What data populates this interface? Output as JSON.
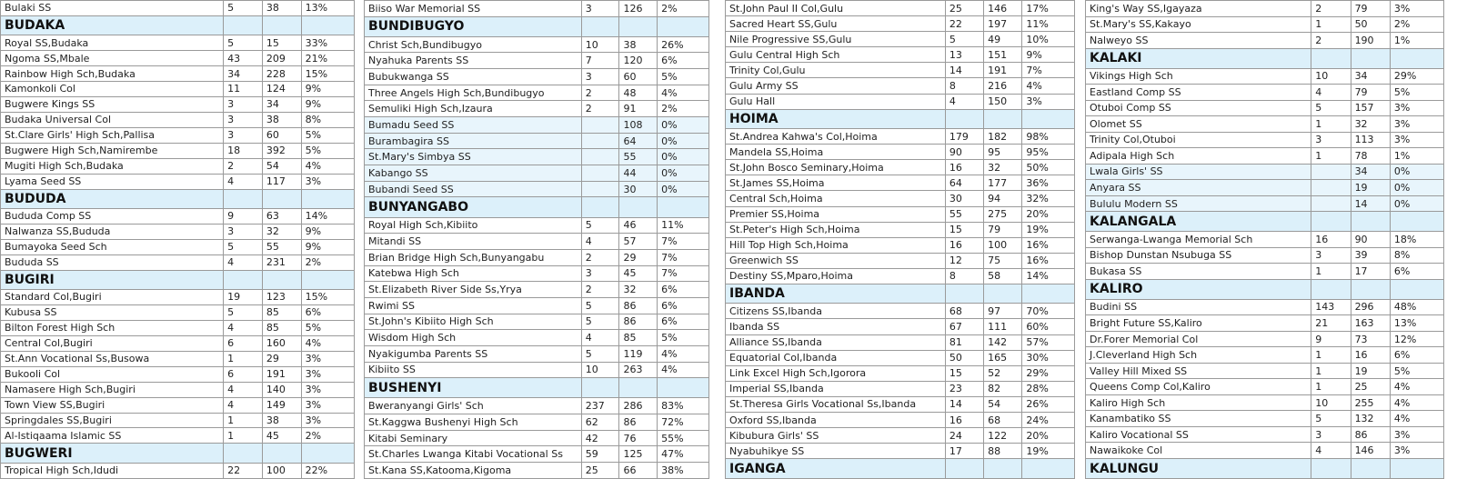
{
  "columns": [
    {
      "rows": [
        {
          "school": "Bulaki SS",
          "a": 5,
          "b": 38,
          "pct": "13%"
        },
        {
          "heading": "BUDAKA"
        },
        {
          "school": "Royal SS,Budaka",
          "a": 5,
          "b": 15,
          "pct": "33%"
        },
        {
          "school": "Ngoma SS,Mbale",
          "a": 43,
          "b": 209,
          "pct": "21%"
        },
        {
          "school": "Rainbow High Sch,Budaka",
          "a": 34,
          "b": 228,
          "pct": "15%"
        },
        {
          "school": "Kamonkoli Col",
          "a": 11,
          "b": 124,
          "pct": "9%"
        },
        {
          "school": "Bugwere Kings SS",
          "a": 3,
          "b": 34,
          "pct": "9%"
        },
        {
          "school": "Budaka Universal Col",
          "a": 3,
          "b": 38,
          "pct": "8%"
        },
        {
          "school": "St.Clare Girls' High Sch,Pallisa",
          "a": 3,
          "b": 60,
          "pct": "5%"
        },
        {
          "school": "Bugwere High Sch,Namirembe",
          "a": 18,
          "b": 392,
          "pct": "5%"
        },
        {
          "school": "Mugiti High Sch,Budaka",
          "a": 2,
          "b": 54,
          "pct": "4%"
        },
        {
          "school": "Lyama Seed SS",
          "a": 4,
          "b": 117,
          "pct": "3%"
        },
        {
          "heading": "BUDUDA"
        },
        {
          "school": "Bududa Comp SS",
          "a": 9,
          "b": 63,
          "pct": "14%"
        },
        {
          "school": "Nalwanza SS,Bududa",
          "a": 3,
          "b": 32,
          "pct": "9%"
        },
        {
          "school": "Bumayoka Seed Sch",
          "a": 5,
          "b": 55,
          "pct": "9%"
        },
        {
          "school": "Bududa SS",
          "a": 4,
          "b": 231,
          "pct": "2%"
        },
        {
          "heading": "BUGIRI"
        },
        {
          "school": "Standard Col,Bugiri",
          "a": 19,
          "b": 123,
          "pct": "15%"
        },
        {
          "school": "Kubusa SS",
          "a": 5,
          "b": 85,
          "pct": "6%"
        },
        {
          "school": "Bilton Forest High Sch",
          "a": 4,
          "b": 85,
          "pct": "5%"
        },
        {
          "school": "Central Col,Bugiri",
          "a": 6,
          "b": 160,
          "pct": "4%"
        },
        {
          "school": "St.Ann Vocational Ss,Busowa",
          "a": 1,
          "b": 29,
          "pct": "3%"
        },
        {
          "school": "Bukooli Col",
          "a": 6,
          "b": 191,
          "pct": "3%"
        },
        {
          "school": "Namasere High Sch,Bugiri",
          "a": 4,
          "b": 140,
          "pct": "3%"
        },
        {
          "school": "Town View SS,Bugiri",
          "a": 4,
          "b": 149,
          "pct": "3%"
        },
        {
          "school": "Springdales SS,Bugiri",
          "a": 1,
          "b": 38,
          "pct": "3%"
        },
        {
          "school": "Al-Istiqaama Islamic SS",
          "a": 1,
          "b": 45,
          "pct": "2%"
        },
        {
          "heading": "BUGWERI"
        },
        {
          "school": "Tropical High Sch,Idudi",
          "a": 22,
          "b": 100,
          "pct": "22%"
        }
      ]
    },
    {
      "rows": [
        {
          "school": "Biiso War Memorial SS",
          "a": 3,
          "b": 126,
          "pct": "2%"
        },
        {
          "heading": "BUNDIBUGYO"
        },
        {
          "school": "Christ Sch,Bundibugyo",
          "a": 10,
          "b": 38,
          "pct": "26%"
        },
        {
          "school": "Nyahuka Parents SS",
          "a": 7,
          "b": 120,
          "pct": "6%"
        },
        {
          "school": "Bubukwanga SS",
          "a": 3,
          "b": 60,
          "pct": "5%"
        },
        {
          "school": "Three Angels High Sch,Bundibugyo",
          "a": 2,
          "b": 48,
          "pct": "4%"
        },
        {
          "school": "Semuliki High Sch,Izaura",
          "a": 2,
          "b": 91,
          "pct": "2%"
        },
        {
          "school": "Bumadu Seed SS",
          "a": null,
          "b": 108,
          "pct": "0%"
        },
        {
          "school": "Burambagira SS",
          "a": null,
          "b": 64,
          "pct": "0%"
        },
        {
          "school": "St.Mary's Simbya SS",
          "a": null,
          "b": 55,
          "pct": "0%"
        },
        {
          "school": "Kabango SS",
          "a": null,
          "b": 44,
          "pct": "0%"
        },
        {
          "school": "Bubandi Seed SS",
          "a": null,
          "b": 30,
          "pct": "0%"
        },
        {
          "heading": "BUNYANGABO"
        },
        {
          "school": "Royal High Sch,Kibiito",
          "a": 5,
          "b": 46,
          "pct": "11%"
        },
        {
          "school": "Mitandi SS",
          "a": 4,
          "b": 57,
          "pct": "7%"
        },
        {
          "school": "Brian Bridge High Sch,Bunyangabu",
          "a": 2,
          "b": 29,
          "pct": "7%"
        },
        {
          "school": "Katebwa High Sch",
          "a": 3,
          "b": 45,
          "pct": "7%"
        },
        {
          "school": "St.Elizabeth River Side Ss,Yrya",
          "a": 2,
          "b": 32,
          "pct": "6%"
        },
        {
          "school": "Rwimi SS",
          "a": 5,
          "b": 86,
          "pct": "6%"
        },
        {
          "school": "St.John's Kibiito High Sch",
          "a": 5,
          "b": 86,
          "pct": "6%"
        },
        {
          "school": "Wisdom High Sch",
          "a": 4,
          "b": 85,
          "pct": "5%"
        },
        {
          "school": "Nyakigumba Parents SS",
          "a": 5,
          "b": 119,
          "pct": "4%"
        },
        {
          "school": "Kibiito SS",
          "a": 10,
          "b": 263,
          "pct": "4%"
        },
        {
          "heading": "BUSHENYI"
        },
        {
          "school": "Bweranyangi Girls' Sch",
          "a": 237,
          "b": 286,
          "pct": "83%"
        },
        {
          "school": "St.Kaggwa Bushenyi High Sch",
          "a": 62,
          "b": 86,
          "pct": "72%"
        },
        {
          "school": "Kitabi Seminary",
          "a": 42,
          "b": 76,
          "pct": "55%"
        },
        {
          "school": "St.Charles Lwanga Kitabi Vocational Ss",
          "a": 59,
          "b": 125,
          "pct": "47%"
        },
        {
          "school": "St.Kana SS,Katooma,Kigoma",
          "a": 25,
          "b": 66,
          "pct": "38%"
        }
      ]
    },
    {
      "rows": [
        {
          "school": "St.John Paul II Col,Gulu",
          "a": 25,
          "b": 146,
          "pct": "17%"
        },
        {
          "school": "Sacred Heart SS,Gulu",
          "a": 22,
          "b": 197,
          "pct": "11%"
        },
        {
          "school": "Nile Progressive SS,Gulu",
          "a": 5,
          "b": 49,
          "pct": "10%"
        },
        {
          "school": "Gulu Central High Sch",
          "a": 13,
          "b": 151,
          "pct": "9%"
        },
        {
          "school": "Trinity Col,Gulu",
          "a": 14,
          "b": 191,
          "pct": "7%"
        },
        {
          "school": "Gulu Army SS",
          "a": 8,
          "b": 216,
          "pct": "4%"
        },
        {
          "school": "Gulu Hall",
          "a": 4,
          "b": 150,
          "pct": "3%"
        },
        {
          "heading": "HOIMA"
        },
        {
          "school": "St.Andrea Kahwa's Col,Hoima",
          "a": 179,
          "b": 182,
          "pct": "98%"
        },
        {
          "school": "Mandela SS,Hoima",
          "a": 90,
          "b": 95,
          "pct": "95%"
        },
        {
          "school": "St.John Bosco Seminary,Hoima",
          "a": 16,
          "b": 32,
          "pct": "50%"
        },
        {
          "school": "St.James SS,Hoima",
          "a": 64,
          "b": 177,
          "pct": "36%"
        },
        {
          "school": "Central Sch,Hoima",
          "a": 30,
          "b": 94,
          "pct": "32%"
        },
        {
          "school": "Premier SS,Hoima",
          "a": 55,
          "b": 275,
          "pct": "20%"
        },
        {
          "school": "St.Peter's High Sch,Hoima",
          "a": 15,
          "b": 79,
          "pct": "19%"
        },
        {
          "school": "Hill Top High Sch,Hoima",
          "a": 16,
          "b": 100,
          "pct": "16%"
        },
        {
          "school": "Greenwich SS",
          "a": 12,
          "b": 75,
          "pct": "16%"
        },
        {
          "school": "Destiny SS,Mparo,Hoima",
          "a": 8,
          "b": 58,
          "pct": "14%"
        },
        {
          "heading": "IBANDA"
        },
        {
          "school": "Citizens SS,Ibanda",
          "a": 68,
          "b": 97,
          "pct": "70%"
        },
        {
          "school": "Ibanda SS",
          "a": 67,
          "b": 111,
          "pct": "60%"
        },
        {
          "school": "Alliance SS,Ibanda",
          "a": 81,
          "b": 142,
          "pct": "57%"
        },
        {
          "school": "Equatorial Col,Ibanda",
          "a": 50,
          "b": 165,
          "pct": "30%"
        },
        {
          "school": "Link Excel High Sch,Igorora",
          "a": 15,
          "b": 52,
          "pct": "29%"
        },
        {
          "school": "Imperial SS,Ibanda",
          "a": 23,
          "b": 82,
          "pct": "28%"
        },
        {
          "school": "St.Theresa Girls Vocational Ss,Ibanda",
          "a": 14,
          "b": 54,
          "pct": "26%"
        },
        {
          "school": "Oxford SS,Ibanda",
          "a": 16,
          "b": 68,
          "pct": "24%"
        },
        {
          "school": "Kibubura Girls' SS",
          "a": 24,
          "b": 122,
          "pct": "20%"
        },
        {
          "school": "Nyabuhikye SS",
          "a": 17,
          "b": 88,
          "pct": "19%"
        },
        {
          "heading": "IGANGA"
        }
      ]
    },
    {
      "rows": [
        {
          "school": "King's Way SS,Igayaza",
          "a": 2,
          "b": 79,
          "pct": "3%"
        },
        {
          "school": "St.Mary's SS,Kakayo",
          "a": 1,
          "b": 50,
          "pct": "2%"
        },
        {
          "school": "Nalweyo SS",
          "a": 2,
          "b": 190,
          "pct": "1%"
        },
        {
          "heading": "KALAKI"
        },
        {
          "school": "Vikings High Sch",
          "a": 10,
          "b": 34,
          "pct": "29%"
        },
        {
          "school": "Eastland Comp SS",
          "a": 4,
          "b": 79,
          "pct": "5%"
        },
        {
          "school": "Otuboi Comp SS",
          "a": 5,
          "b": 157,
          "pct": "3%"
        },
        {
          "school": "Olomet SS",
          "a": 1,
          "b": 32,
          "pct": "3%"
        },
        {
          "school": "Trinity Col,Otuboi",
          "a": 3,
          "b": 113,
          "pct": "3%"
        },
        {
          "school": "Adipala High Sch",
          "a": 1,
          "b": 78,
          "pct": "1%"
        },
        {
          "school": "Lwala Girls' SS",
          "a": null,
          "b": 34,
          "pct": "0%"
        },
        {
          "school": "Anyara SS",
          "a": null,
          "b": 19,
          "pct": "0%"
        },
        {
          "school": "Bululu Modern SS",
          "a": null,
          "b": 14,
          "pct": "0%"
        },
        {
          "heading": "KALANGALA"
        },
        {
          "school": "Serwanga-Lwanga Memorial Sch",
          "a": 16,
          "b": 90,
          "pct": "18%"
        },
        {
          "school": "Bishop Dunstan Nsubuga SS",
          "a": 3,
          "b": 39,
          "pct": "8%"
        },
        {
          "school": "Bukasa SS",
          "a": 1,
          "b": 17,
          "pct": "6%"
        },
        {
          "heading": "KALIRO"
        },
        {
          "school": "Budini SS",
          "a": 143,
          "b": 296,
          "pct": "48%"
        },
        {
          "school": "Bright Future SS,Kaliro",
          "a": 21,
          "b": 163,
          "pct": "13%"
        },
        {
          "school": "Dr.Forer Memorial Col",
          "a": 9,
          "b": 73,
          "pct": "12%"
        },
        {
          "school": "J.Cleverland High Sch",
          "a": 1,
          "b": 16,
          "pct": "6%"
        },
        {
          "school": "Valley Hill Mixed SS",
          "a": 1,
          "b": 19,
          "pct": "5%"
        },
        {
          "school": "Queens Comp Col,Kaliro",
          "a": 1,
          "b": 25,
          "pct": "4%"
        },
        {
          "school": "Kaliro High Sch",
          "a": 10,
          "b": 255,
          "pct": "4%"
        },
        {
          "school": "Kanambatiko SS",
          "a": 5,
          "b": 132,
          "pct": "4%"
        },
        {
          "school": "Kaliro Vocational SS",
          "a": 3,
          "b": 86,
          "pct": "3%"
        },
        {
          "school": "Nawaikoke Col",
          "a": 4,
          "b": 146,
          "pct": "3%"
        },
        {
          "heading": "KALUNGU"
        }
      ]
    }
  ]
}
